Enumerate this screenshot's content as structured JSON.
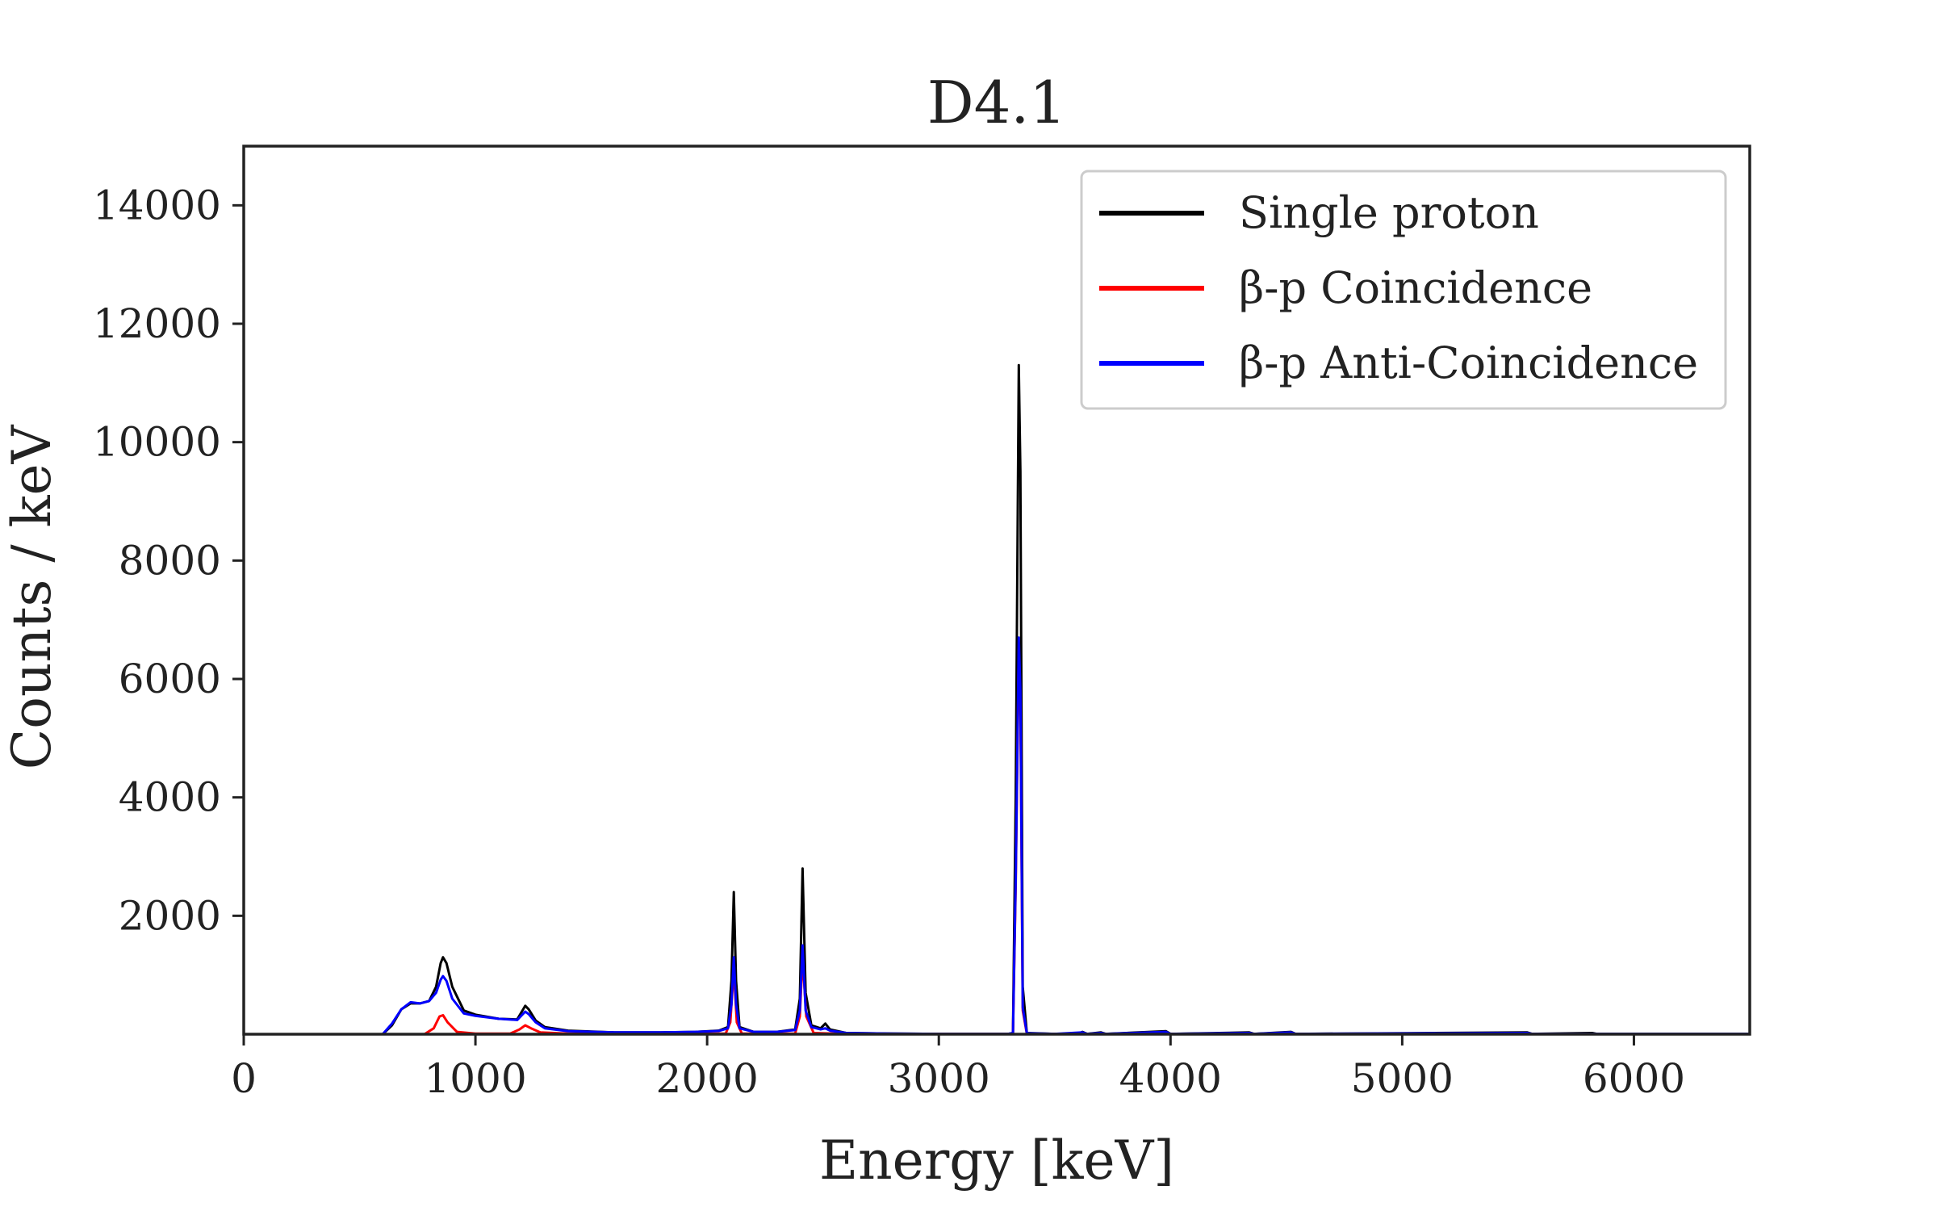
{
  "chart_data": {
    "type": "line",
    "title": "D4.1",
    "xlabel": "Energy [keV]",
    "ylabel": "Counts / keV",
    "xlim": [
      0,
      6500
    ],
    "ylim": [
      0,
      15000
    ],
    "xticks": [
      0,
      1000,
      2000,
      3000,
      4000,
      5000,
      6000
    ],
    "yticks": [
      2000,
      4000,
      6000,
      8000,
      10000,
      12000,
      14000
    ],
    "grid": false,
    "legend_position": "top-right",
    "series": [
      {
        "name": "Single proton",
        "color": "#000000",
        "points": [
          [
            0,
            0
          ],
          [
            600,
            0
          ],
          [
            640,
            150
          ],
          [
            680,
            420
          ],
          [
            720,
            520
          ],
          [
            760,
            520
          ],
          [
            800,
            560
          ],
          [
            830,
            800
          ],
          [
            850,
            1200
          ],
          [
            860,
            1300
          ],
          [
            875,
            1200
          ],
          [
            900,
            800
          ],
          [
            950,
            400
          ],
          [
            1000,
            330
          ],
          [
            1100,
            260
          ],
          [
            1180,
            250
          ],
          [
            1200,
            380
          ],
          [
            1215,
            480
          ],
          [
            1230,
            420
          ],
          [
            1260,
            230
          ],
          [
            1300,
            120
          ],
          [
            1400,
            60
          ],
          [
            1600,
            30
          ],
          [
            1800,
            30
          ],
          [
            1950,
            40
          ],
          [
            2050,
            60
          ],
          [
            2090,
            120
          ],
          [
            2105,
            900
          ],
          [
            2115,
            2400
          ],
          [
            2125,
            900
          ],
          [
            2140,
            120
          ],
          [
            2200,
            40
          ],
          [
            2300,
            40
          ],
          [
            2380,
            80
          ],
          [
            2400,
            600
          ],
          [
            2412,
            2800
          ],
          [
            2425,
            700
          ],
          [
            2450,
            150
          ],
          [
            2490,
            100
          ],
          [
            2510,
            180
          ],
          [
            2530,
            80
          ],
          [
            2600,
            20
          ],
          [
            2800,
            10
          ],
          [
            3000,
            5
          ],
          [
            3300,
            5
          ],
          [
            3320,
            20
          ],
          [
            3332,
            4000
          ],
          [
            3345,
            11300
          ],
          [
            3352,
            9500
          ],
          [
            3362,
            800
          ],
          [
            3380,
            20
          ],
          [
            3500,
            5
          ],
          [
            3600,
            5
          ],
          [
            3620,
            40
          ],
          [
            3640,
            5
          ],
          [
            3700,
            30
          ],
          [
            3720,
            5
          ],
          [
            3980,
            50
          ],
          [
            4000,
            5
          ],
          [
            4340,
            30
          ],
          [
            4360,
            5
          ],
          [
            4520,
            40
          ],
          [
            4540,
            5
          ],
          [
            5540,
            30
          ],
          [
            5560,
            5
          ],
          [
            5820,
            20
          ],
          [
            5840,
            5
          ],
          [
            6500,
            5
          ]
        ]
      },
      {
        "name": "β-p Coincidence",
        "color": "#ff0000",
        "points": [
          [
            0,
            0
          ],
          [
            780,
            0
          ],
          [
            820,
            100
          ],
          [
            845,
            300
          ],
          [
            860,
            320
          ],
          [
            880,
            200
          ],
          [
            920,
            40
          ],
          [
            1000,
            10
          ],
          [
            1150,
            10
          ],
          [
            1190,
            80
          ],
          [
            1215,
            150
          ],
          [
            1240,
            100
          ],
          [
            1280,
            30
          ],
          [
            1400,
            10
          ],
          [
            2080,
            10
          ],
          [
            2100,
            200
          ],
          [
            2115,
            1100
          ],
          [
            2128,
            200
          ],
          [
            2150,
            10
          ],
          [
            2380,
            10
          ],
          [
            2400,
            300
          ],
          [
            2412,
            1300
          ],
          [
            2428,
            300
          ],
          [
            2460,
            20
          ],
          [
            2600,
            5
          ],
          [
            3320,
            5
          ],
          [
            3332,
            2500
          ],
          [
            3345,
            6500
          ],
          [
            3352,
            5500
          ],
          [
            3362,
            400
          ],
          [
            3380,
            5
          ],
          [
            6500,
            0
          ]
        ]
      },
      {
        "name": "β-p Anti-Coincidence",
        "color": "#0000ff",
        "points": [
          [
            0,
            0
          ],
          [
            600,
            0
          ],
          [
            640,
            180
          ],
          [
            680,
            420
          ],
          [
            720,
            540
          ],
          [
            760,
            520
          ],
          [
            800,
            560
          ],
          [
            830,
            700
          ],
          [
            850,
            920
          ],
          [
            860,
            980
          ],
          [
            875,
            900
          ],
          [
            900,
            600
          ],
          [
            950,
            350
          ],
          [
            1000,
            310
          ],
          [
            1100,
            260
          ],
          [
            1180,
            240
          ],
          [
            1200,
            320
          ],
          [
            1215,
            380
          ],
          [
            1230,
            340
          ],
          [
            1260,
            200
          ],
          [
            1300,
            100
          ],
          [
            1400,
            50
          ],
          [
            1600,
            30
          ],
          [
            1800,
            30
          ],
          [
            1950,
            40
          ],
          [
            2050,
            55
          ],
          [
            2090,
            100
          ],
          [
            2105,
            500
          ],
          [
            2115,
            1300
          ],
          [
            2125,
            500
          ],
          [
            2140,
            100
          ],
          [
            2200,
            40
          ],
          [
            2300,
            40
          ],
          [
            2380,
            70
          ],
          [
            2400,
            400
          ],
          [
            2412,
            1500
          ],
          [
            2425,
            400
          ],
          [
            2450,
            120
          ],
          [
            2490,
            80
          ],
          [
            2510,
            100
          ],
          [
            2530,
            60
          ],
          [
            2600,
            20
          ],
          [
            2800,
            10
          ],
          [
            3000,
            5
          ],
          [
            3300,
            5
          ],
          [
            3320,
            20
          ],
          [
            3332,
            2600
          ],
          [
            3345,
            6700
          ],
          [
            3352,
            5800
          ],
          [
            3362,
            450
          ],
          [
            3380,
            15
          ],
          [
            3500,
            5
          ],
          [
            3620,
            30
          ],
          [
            3640,
            5
          ],
          [
            3700,
            20
          ],
          [
            3720,
            5
          ],
          [
            3980,
            40
          ],
          [
            4000,
            5
          ],
          [
            4340,
            20
          ],
          [
            4360,
            5
          ],
          [
            4520,
            30
          ],
          [
            4540,
            5
          ],
          [
            5540,
            20
          ],
          [
            5560,
            5
          ],
          [
            6500,
            5
          ]
        ]
      }
    ]
  }
}
